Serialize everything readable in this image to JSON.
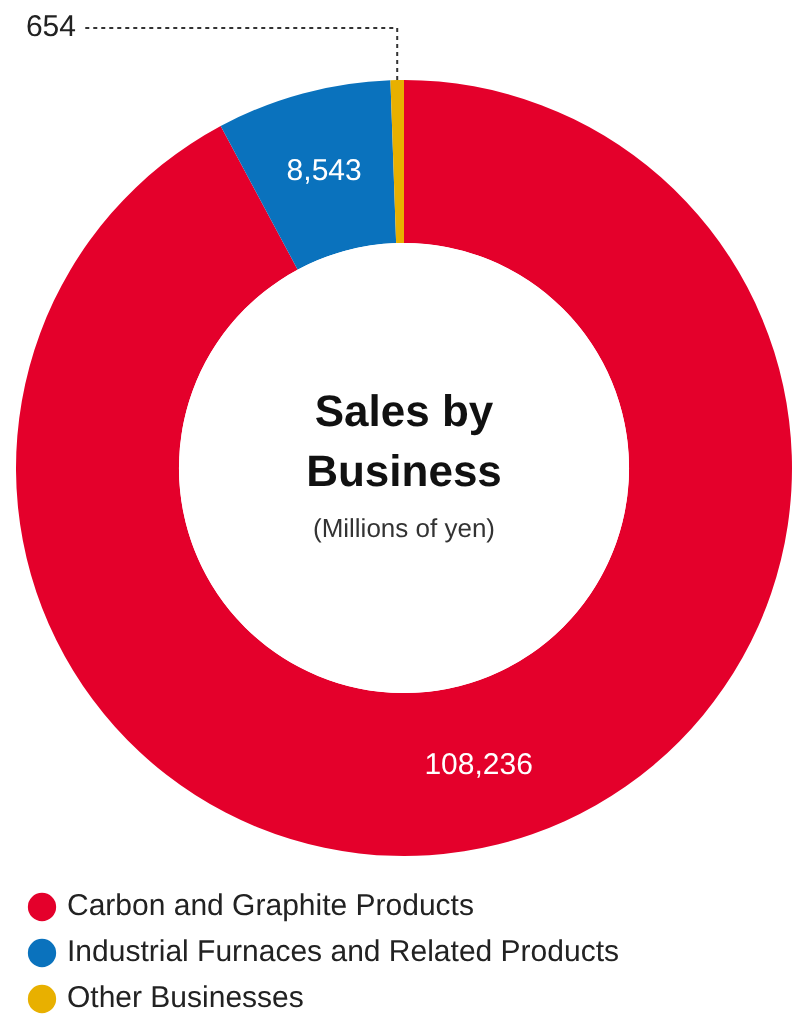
{
  "chart_data": {
    "type": "donut",
    "title": "Sales by Business",
    "subtitle": "(Millions of yen)",
    "categories": [
      "Carbon and Graphite Products",
      "Industrial Furnaces and Related Products",
      "Other Businesses"
    ],
    "values": [
      108236,
      8543,
      654
    ],
    "colors": [
      "#e4002b",
      "#0a72bd",
      "#e8b000"
    ],
    "value_labels": [
      "108,236",
      "8,543",
      "654"
    ],
    "legend": "bottom left"
  }
}
